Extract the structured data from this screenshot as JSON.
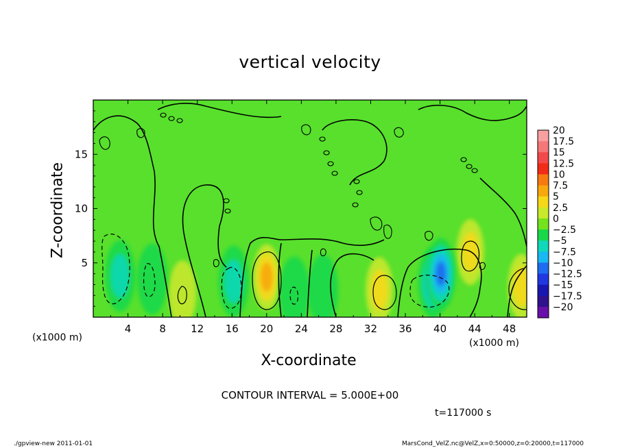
{
  "chart_data": {
    "type": "heatmap",
    "title": "vertical velocity",
    "xlabel": "X-coordinate",
    "ylabel": "Z-coordinate",
    "x_unit_left": "(x1000 m)",
    "x_unit_right": "(x1000 m)",
    "xlim": [
      0,
      50
    ],
    "ylim": [
      0,
      20
    ],
    "xticks": [
      4,
      8,
      12,
      16,
      20,
      24,
      28,
      32,
      36,
      40,
      44,
      48
    ],
    "yticks": [
      5,
      10,
      15
    ],
    "colorbar": {
      "levels": [
        20,
        17.5,
        15,
        12.5,
        10,
        7.5,
        5,
        2.5,
        0,
        -2.5,
        -5,
        -7.5,
        -10,
        -12.5,
        -15,
        -17.5,
        -20
      ],
      "labels": [
        "20",
        "17.5",
        "15",
        "12.5",
        "10",
        "7.5",
        "5",
        "2.5",
        "0",
        "−2.5",
        "−5",
        "−7.5",
        "−10",
        "−12.5",
        "−15",
        "−17.5",
        "−20"
      ],
      "colors": [
        "#f7a0a0",
        "#f57878",
        "#f24a4a",
        "#f02c18",
        "#f77a10",
        "#f7a80c",
        "#f5d818",
        "#c8e82c",
        "#74e21c",
        "#18d84a",
        "#10d8b8",
        "#18b8f0",
        "#1e6cf0",
        "#2038e0",
        "#1818b0",
        "#30128c",
        "#6810a8"
      ]
    },
    "background_color": "#58e02c",
    "features": [
      {
        "kind": "updraft",
        "x": 20,
        "z": 3.7,
        "peak": 7.5
      },
      {
        "kind": "updraft",
        "x": 33,
        "z": 2.5,
        "peak": 5
      },
      {
        "kind": "updraft",
        "x": 49.4,
        "z": 2.8,
        "peak": 5
      },
      {
        "kind": "updraft",
        "x": 43.5,
        "z": 6,
        "peak": 5
      },
      {
        "kind": "updraft",
        "x": 10.3,
        "z": 2.2,
        "peak": 2.5
      },
      {
        "kind": "downdraft",
        "x": 3.1,
        "z": 3.8,
        "peak": -5
      },
      {
        "kind": "downdraft",
        "x": 16.2,
        "z": 3.3,
        "peak": -5
      },
      {
        "kind": "downdraft",
        "x": 39.2,
        "z": 3.2,
        "peak": -7.5
      },
      {
        "kind": "downdraft",
        "x": 40.1,
        "z": 4,
        "peak": -10
      },
      {
        "kind": "downdraft",
        "x": 6.8,
        "z": 3.5,
        "peak": -2.5
      },
      {
        "kind": "downdraft",
        "x": 26.5,
        "z": 2.5,
        "peak": -2.5
      },
      {
        "kind": "downdraft",
        "x": 23.2,
        "z": 2.3,
        "peak": -2.5
      }
    ],
    "contour_interval": "CONTOUR INTERVAL = 5.000E+00",
    "time": "t=117000 s"
  },
  "footer": {
    "left": "./gpview-new   2011-01-01",
    "right": "MarsCond_VelZ.nc@VelZ,x=0:50000,z=0:20000,t=117000"
  }
}
